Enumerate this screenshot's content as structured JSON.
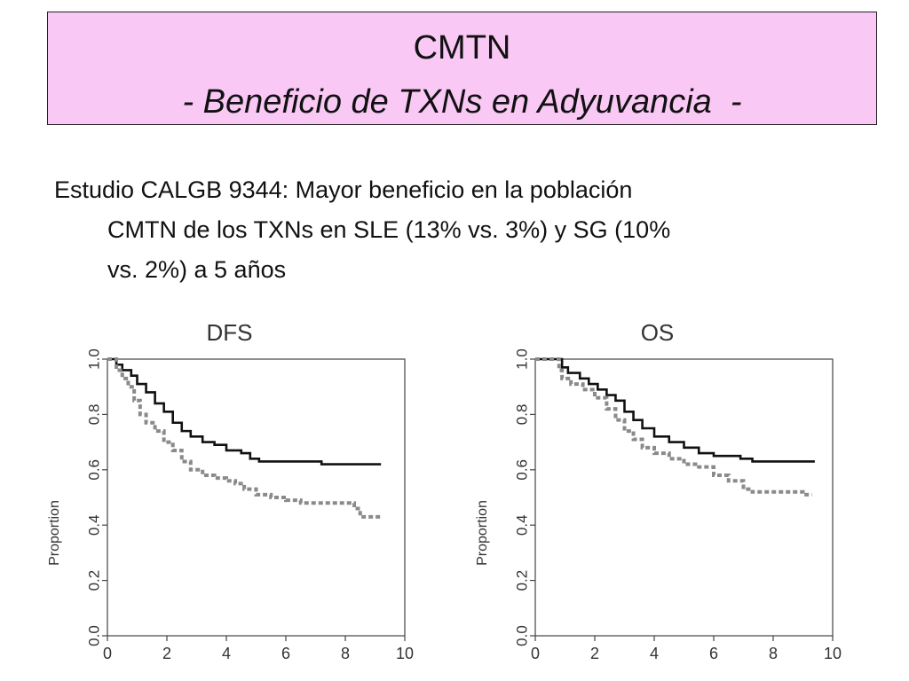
{
  "slide": {
    "title": "CMTN",
    "subtitle": "- Beneficio de TXNs en Adyuvancia  -",
    "text_lines": [
      "Estudio CALGB 9344: Mayor beneficio en la población",
      "CMTN de los TXNs en SLE (13% vs. 3%) y SG (10%",
      "vs. 2%) a 5 años"
    ]
  },
  "colors": {
    "title_background": "#f9c8f5",
    "solid_series": "#111111",
    "dashed_series": "#8a8a8a"
  },
  "chart_data": [
    {
      "type": "line",
      "title": "DFS",
      "xlabel": "",
      "ylabel": "Proportion",
      "xlim": [
        0,
        10
      ],
      "ylim": [
        0.0,
        1.0
      ],
      "xticks": [
        "0",
        "2",
        "4",
        "6",
        "8",
        "10"
      ],
      "yticks": [
        "0.0",
        "0.2",
        "0.4",
        "0.6",
        "0.8",
        "1.0"
      ],
      "grid": false,
      "series": [
        {
          "style": "solid",
          "points": [
            [
              0,
              1.0
            ],
            [
              0.3,
              0.98
            ],
            [
              0.5,
              0.96
            ],
            [
              0.8,
              0.94
            ],
            [
              1.0,
              0.91
            ],
            [
              1.3,
              0.88
            ],
            [
              1.6,
              0.84
            ],
            [
              1.9,
              0.81
            ],
            [
              2.2,
              0.77
            ],
            [
              2.5,
              0.74
            ],
            [
              2.8,
              0.72
            ],
            [
              3.2,
              0.7
            ],
            [
              3.6,
              0.69
            ],
            [
              4.0,
              0.67
            ],
            [
              4.5,
              0.66
            ],
            [
              4.8,
              0.64
            ],
            [
              5.1,
              0.63
            ],
            [
              6.0,
              0.63
            ],
            [
              7.0,
              0.63
            ],
            [
              7.2,
              0.62
            ],
            [
              8.0,
              0.62
            ],
            [
              9.0,
              0.62
            ],
            [
              9.2,
              0.62
            ]
          ]
        },
        {
          "style": "dashed",
          "points": [
            [
              0,
              1.0
            ],
            [
              0.3,
              0.96
            ],
            [
              0.5,
              0.93
            ],
            [
              0.7,
              0.9
            ],
            [
              0.9,
              0.85
            ],
            [
              1.1,
              0.8
            ],
            [
              1.3,
              0.77
            ],
            [
              1.6,
              0.74
            ],
            [
              1.9,
              0.7
            ],
            [
              2.2,
              0.67
            ],
            [
              2.5,
              0.63
            ],
            [
              2.8,
              0.6
            ],
            [
              3.2,
              0.58
            ],
            [
              3.6,
              0.57
            ],
            [
              4.0,
              0.56
            ],
            [
              4.3,
              0.55
            ],
            [
              4.6,
              0.53
            ],
            [
              5.0,
              0.51
            ],
            [
              5.5,
              0.5
            ],
            [
              6.0,
              0.49
            ],
            [
              6.5,
              0.48
            ],
            [
              7.5,
              0.48
            ],
            [
              8.1,
              0.48
            ],
            [
              8.3,
              0.46
            ],
            [
              8.5,
              0.43
            ],
            [
              9.2,
              0.43
            ]
          ]
        }
      ]
    },
    {
      "type": "line",
      "title": "OS",
      "xlabel": "",
      "ylabel": "Proportion",
      "xlim": [
        0,
        10
      ],
      "ylim": [
        0.0,
        1.0
      ],
      "xticks": [
        "0",
        "2",
        "4",
        "6",
        "8",
        "10"
      ],
      "yticks": [
        "0.0",
        "0.2",
        "0.4",
        "0.6",
        "0.8",
        "1.0"
      ],
      "grid": false,
      "series": [
        {
          "style": "solid",
          "points": [
            [
              0,
              1.0
            ],
            [
              0.7,
              1.0
            ],
            [
              0.9,
              0.97
            ],
            [
              1.1,
              0.95
            ],
            [
              1.5,
              0.93
            ],
            [
              1.8,
              0.91
            ],
            [
              2.1,
              0.89
            ],
            [
              2.4,
              0.87
            ],
            [
              2.7,
              0.85
            ],
            [
              3.0,
              0.81
            ],
            [
              3.3,
              0.78
            ],
            [
              3.6,
              0.75
            ],
            [
              4.0,
              0.72
            ],
            [
              4.5,
              0.7
            ],
            [
              5.0,
              0.68
            ],
            [
              5.5,
              0.66
            ],
            [
              6.0,
              0.65
            ],
            [
              6.5,
              0.65
            ],
            [
              6.9,
              0.64
            ],
            [
              7.3,
              0.63
            ],
            [
              8.0,
              0.63
            ],
            [
              9.0,
              0.63
            ],
            [
              9.4,
              0.63
            ]
          ]
        },
        {
          "style": "dashed",
          "points": [
            [
              0,
              1.0
            ],
            [
              0.7,
              1.0
            ],
            [
              0.8,
              0.96
            ],
            [
              0.9,
              0.93
            ],
            [
              1.2,
              0.91
            ],
            [
              1.6,
              0.89
            ],
            [
              2.0,
              0.86
            ],
            [
              2.4,
              0.82
            ],
            [
              2.7,
              0.78
            ],
            [
              3.0,
              0.74
            ],
            [
              3.3,
              0.71
            ],
            [
              3.6,
              0.68
            ],
            [
              4.0,
              0.66
            ],
            [
              4.5,
              0.64
            ],
            [
              5.0,
              0.62
            ],
            [
              5.5,
              0.61
            ],
            [
              6.0,
              0.58
            ],
            [
              6.5,
              0.56
            ],
            [
              7.0,
              0.53
            ],
            [
              7.3,
              0.52
            ],
            [
              8.0,
              0.52
            ],
            [
              9.0,
              0.51
            ],
            [
              9.3,
              0.51
            ]
          ]
        }
      ]
    }
  ]
}
